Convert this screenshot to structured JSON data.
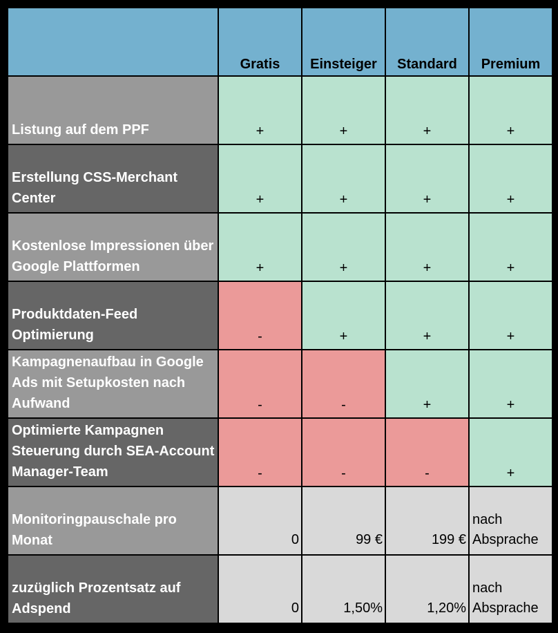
{
  "header": {
    "columns": [
      "Gratis",
      "Einsteiger",
      "Standard",
      "Premium"
    ]
  },
  "rows": [
    {
      "label": "Listung auf dem PPF",
      "cells": [
        "+",
        "+",
        "+",
        "+"
      ]
    },
    {
      "label": "Erstellung CSS-Merchant Center",
      "cells": [
        "+",
        "+",
        "+",
        "+"
      ]
    },
    {
      "label": "Kostenlose Impressionen über Google Plattformen",
      "cells": [
        "+",
        "+",
        "+",
        "+"
      ]
    },
    {
      "label": "Produktdaten-Feed Optimierung",
      "cells": [
        "-",
        "+",
        "+",
        "+"
      ]
    },
    {
      "label": "Kampagnenaufbau in Google Ads mit Setupkosten nach Aufwand",
      "cells": [
        "-",
        "-",
        "+",
        "+"
      ]
    },
    {
      "label": "Optimierte Kampagnen Steuerung durch SEA-Account Manager-Team",
      "cells": [
        "-",
        "-",
        "-",
        "+"
      ]
    },
    {
      "label": "Monitoringpauschale pro Monat",
      "cells": [
        "0",
        "99 €",
        "199 €",
        "nach Absprache"
      ]
    },
    {
      "label": "zuzüglich Prozentsatz auf Adspend",
      "cells": [
        "0",
        "1,50%",
        "1,20%",
        "nach Absprache"
      ]
    }
  ],
  "colors": {
    "header": "#74b1cf",
    "included": "#b9e2cf",
    "excluded": "#eb9a99",
    "price": "#d9d9d9",
    "label_light": "#999999",
    "label_dark": "#666666"
  }
}
